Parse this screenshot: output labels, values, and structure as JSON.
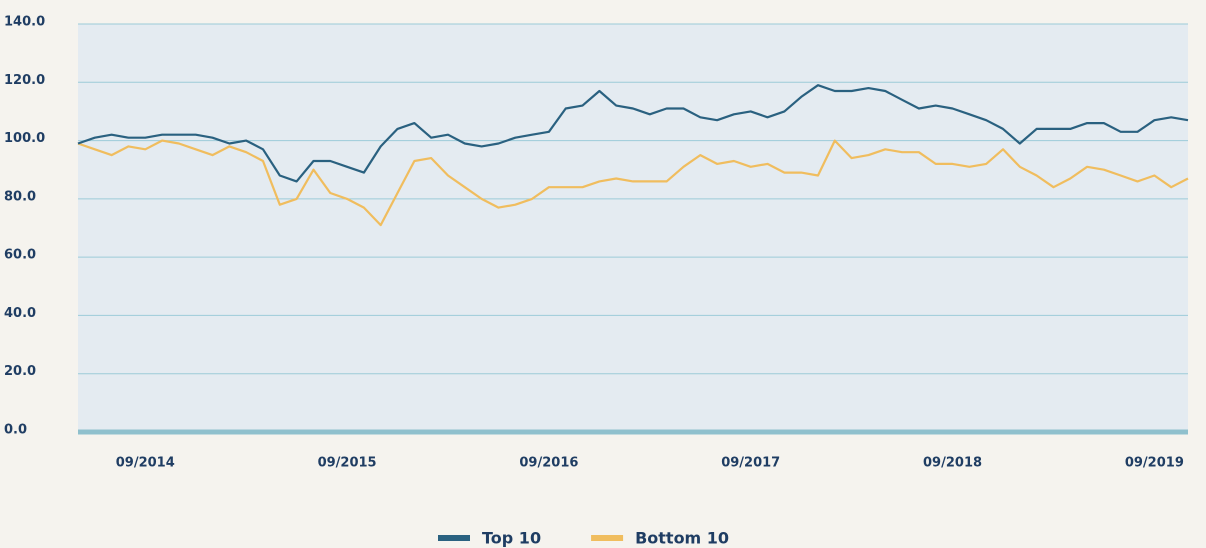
{
  "chart_data": {
    "type": "line",
    "categories": [
      null,
      null,
      null,
      null,
      "09/2014",
      null,
      null,
      null,
      null,
      null,
      null,
      null,
      null,
      null,
      null,
      null,
      "09/2015",
      null,
      null,
      null,
      null,
      null,
      null,
      null,
      null,
      null,
      null,
      null,
      "09/2016",
      null,
      null,
      null,
      null,
      null,
      null,
      null,
      null,
      null,
      null,
      null,
      "09/2017",
      null,
      null,
      null,
      null,
      null,
      null,
      null,
      null,
      null,
      null,
      null,
      "09/2018",
      null,
      null,
      null,
      null,
      null,
      null,
      null,
      null,
      null,
      null,
      null,
      "09/2019",
      null,
      null
    ],
    "series": [
      {
        "name": "Top 10",
        "color": "#2a6180",
        "values": [
          99,
          101,
          102,
          101,
          101,
          102,
          102,
          102,
          101,
          99,
          100,
          97,
          88,
          86,
          93,
          93,
          91,
          89,
          98,
          104,
          106,
          101,
          102,
          99,
          98,
          99,
          101,
          102,
          103,
          111,
          112,
          117,
          112,
          111,
          109,
          111,
          111,
          108,
          107,
          109,
          110,
          108,
          110,
          115,
          119,
          117,
          117,
          118,
          117,
          114,
          111,
          112,
          111,
          109,
          107,
          104,
          99,
          104,
          104,
          104,
          106,
          106,
          103,
          103,
          107,
          108,
          107
        ]
      },
      {
        "name": "Bottom 10",
        "color": "#f0bd5e",
        "values": [
          99,
          97,
          95,
          98,
          97,
          100,
          99,
          97,
          95,
          98,
          96,
          93,
          78,
          80,
          90,
          82,
          80,
          77,
          71,
          82,
          93,
          94,
          88,
          84,
          80,
          77,
          78,
          80,
          84,
          84,
          84,
          86,
          87,
          86,
          86,
          86,
          91,
          95,
          92,
          93,
          91,
          92,
          89,
          89,
          88,
          100,
          94,
          95,
          97,
          96,
          96,
          92,
          92,
          91,
          92,
          97,
          91,
          88,
          84,
          87,
          91,
          90,
          88,
          86,
          88,
          84,
          87
        ]
      }
    ],
    "ylim": [
      0,
      140
    ],
    "yticks": [
      {
        "value": 0,
        "label": "0.0"
      },
      {
        "value": 20,
        "label": "20.0"
      },
      {
        "value": 40,
        "label": "40.0"
      },
      {
        "value": 60,
        "label": "60.0"
      },
      {
        "value": 80,
        "label": "80.0"
      },
      {
        "value": 100,
        "label": "100.0"
      },
      {
        "value": 120,
        "label": "120.0"
      },
      {
        "value": 140,
        "label": "140.0"
      }
    ],
    "grid": true
  }
}
